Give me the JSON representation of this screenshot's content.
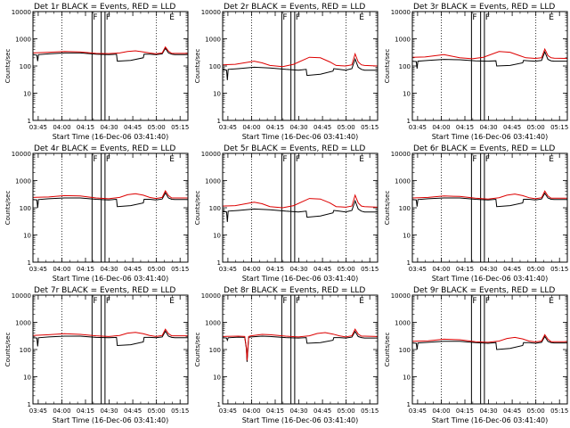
{
  "chart_data": {
    "type": "line",
    "layout": "3x3 grid",
    "xlabel": "Start Time (16-Dec-06 03:41:40)",
    "ylabel": "Counts/sec",
    "x_tick_labels": [
      "03:45",
      "04:00",
      "04:15",
      "04:30",
      "04:45",
      "05:00",
      "05:15"
    ],
    "x_tick_minutes": [
      3.33,
      18.33,
      33.33,
      48.33,
      63.33,
      78.33,
      93.33
    ],
    "xlim_minutes": [
      0,
      98.3
    ],
    "y_scale": "log",
    "ylim": [
      1,
      10000
    ],
    "y_tick_labels": [
      "1",
      "10",
      "100",
      "1000",
      "10000"
    ],
    "y_tick_values": [
      1,
      10,
      100,
      1000,
      10000
    ],
    "dotted_lines_at": [
      "04:00",
      "05:00"
    ],
    "flag_markers": [
      {
        "label": "F",
        "x_minutes": 37.5
      },
      {
        "label": "F",
        "x_minutes": 45.7
      },
      {
        "label": "E",
        "x_minutes": 86.0
      }
    ],
    "solid_vertical_lines_minutes": [
      37.5,
      43.3,
      45.7
    ],
    "series_colors": {
      "events": "#000000",
      "lld": "#dd0000"
    },
    "panels": [
      {
        "title": "Det 1r BLACK = Events, RED = LLD",
        "lld": {
          "x": [
            0,
            10,
            20,
            30,
            40,
            48,
            55,
            60,
            65,
            70,
            74,
            78,
            82,
            84,
            86,
            88,
            90,
            98.3
          ],
          "y": [
            300,
            320,
            340,
            330,
            290,
            285,
            300,
            340,
            360,
            330,
            300,
            280,
            300,
            500,
            350,
            290,
            290,
            290
          ]
        },
        "events": {
          "x": [
            0,
            2.5,
            3,
            3.5,
            10,
            20,
            30,
            40,
            48,
            53,
            53.5,
            62,
            70,
            70.5,
            74,
            78,
            82,
            84,
            86,
            88,
            90,
            98.3
          ],
          "y": [
            260,
            250,
            150,
            260,
            280,
            300,
            300,
            270,
            260,
            270,
            150,
            160,
            200,
            270,
            270,
            260,
            280,
            450,
            300,
            270,
            260,
            260
          ]
        }
      },
      {
        "title": "Det 2r BLACK = Events, RED = LLD",
        "lld": {
          "x": [
            0,
            8,
            20,
            25,
            30,
            38,
            45,
            55,
            62,
            68,
            72,
            78,
            82,
            84,
            86,
            88,
            90,
            98.3
          ],
          "y": [
            110,
            115,
            150,
            130,
            105,
            95,
            115,
            210,
            200,
            140,
            105,
            100,
            110,
            280,
            140,
            110,
            105,
            100
          ]
        },
        "events": {
          "x": [
            0,
            2.5,
            3,
            3.5,
            10,
            20,
            30,
            40,
            48,
            53,
            53.5,
            62,
            70,
            70.5,
            74,
            78,
            82,
            84,
            86,
            88,
            90,
            98.3
          ],
          "y": [
            75,
            70,
            30,
            75,
            80,
            90,
            85,
            75,
            70,
            75,
            45,
            50,
            65,
            80,
            75,
            70,
            80,
            180,
            90,
            75,
            70,
            70
          ]
        }
      },
      {
        "title": "Det 3r BLACK = Events, RED = LLD",
        "lld": {
          "x": [
            0,
            8,
            20,
            25,
            30,
            38,
            45,
            55,
            62,
            68,
            72,
            78,
            82,
            84,
            86,
            88,
            90,
            98.3
          ],
          "y": [
            210,
            215,
            260,
            230,
            200,
            185,
            210,
            340,
            320,
            240,
            200,
            190,
            200,
            420,
            240,
            200,
            195,
            190
          ]
        },
        "events": {
          "x": [
            0,
            2.5,
            3,
            3.5,
            10,
            20,
            30,
            40,
            48,
            53,
            53.5,
            62,
            70,
            70.5,
            74,
            78,
            82,
            84,
            86,
            88,
            90,
            98.3
          ],
          "y": [
            150,
            145,
            80,
            150,
            160,
            175,
            170,
            155,
            150,
            155,
            100,
            105,
            130,
            160,
            155,
            150,
            160,
            330,
            175,
            155,
            150,
            150
          ]
        }
      },
      {
        "title": "Det 4r BLACK = Events, RED = LLD",
        "lld": {
          "x": [
            0,
            10,
            20,
            30,
            40,
            48,
            55,
            60,
            65,
            70,
            74,
            78,
            82,
            84,
            86,
            88,
            90,
            98.3
          ],
          "y": [
            240,
            250,
            280,
            270,
            230,
            215,
            240,
            300,
            330,
            290,
            240,
            220,
            240,
            420,
            280,
            230,
            230,
            230
          ]
        },
        "events": {
          "x": [
            0,
            2.5,
            3,
            3.5,
            10,
            20,
            30,
            40,
            48,
            53,
            53.5,
            62,
            70,
            70.5,
            74,
            78,
            82,
            84,
            86,
            88,
            90,
            98.3
          ],
          "y": [
            200,
            195,
            100,
            200,
            215,
            230,
            230,
            205,
            195,
            205,
            110,
            120,
            150,
            205,
            205,
            195,
            210,
            350,
            230,
            205,
            200,
            200
          ]
        }
      },
      {
        "title": "Det 5r BLACK = Events, RED = LLD",
        "lld": {
          "x": [
            0,
            8,
            20,
            25,
            30,
            38,
            45,
            55,
            62,
            68,
            72,
            78,
            82,
            84,
            86,
            88,
            90,
            98.3
          ],
          "y": [
            115,
            120,
            160,
            140,
            110,
            100,
            120,
            220,
            210,
            150,
            110,
            105,
            115,
            290,
            150,
            115,
            110,
            105
          ]
        },
        "events": {
          "x": [
            0,
            2.5,
            3,
            3.5,
            10,
            20,
            30,
            40,
            48,
            53,
            53.5,
            62,
            70,
            70.5,
            74,
            78,
            82,
            84,
            86,
            88,
            90,
            98.3
          ],
          "y": [
            75,
            70,
            30,
            75,
            80,
            90,
            85,
            75,
            70,
            75,
            45,
            50,
            65,
            80,
            75,
            70,
            80,
            180,
            90,
            75,
            70,
            70
          ]
        }
      },
      {
        "title": "Det 6r BLACK = Events, RED = LLD",
        "lld": {
          "x": [
            0,
            10,
            20,
            30,
            40,
            48,
            55,
            60,
            65,
            70,
            74,
            78,
            82,
            84,
            86,
            88,
            90,
            98.3
          ],
          "y": [
            230,
            240,
            270,
            260,
            225,
            210,
            235,
            290,
            320,
            280,
            235,
            215,
            235,
            410,
            270,
            225,
            225,
            225
          ]
        },
        "events": {
          "x": [
            0,
            2.5,
            3,
            3.5,
            10,
            20,
            30,
            40,
            48,
            53,
            53.5,
            62,
            70,
            70.5,
            74,
            78,
            82,
            84,
            86,
            88,
            90,
            98.3
          ],
          "y": [
            200,
            195,
            110,
            200,
            215,
            230,
            230,
            205,
            195,
            205,
            110,
            120,
            150,
            205,
            205,
            195,
            210,
            340,
            230,
            205,
            200,
            200
          ]
        }
      },
      {
        "title": "Det 7r BLACK = Events, RED = LLD",
        "lld": {
          "x": [
            0,
            10,
            20,
            30,
            40,
            48,
            55,
            60,
            65,
            70,
            74,
            78,
            82,
            84,
            86,
            88,
            90,
            98.3
          ],
          "y": [
            330,
            350,
            380,
            360,
            320,
            300,
            330,
            400,
            430,
            380,
            330,
            300,
            330,
            560,
            380,
            320,
            320,
            320
          ]
        },
        "events": {
          "x": [
            0,
            2.5,
            3,
            3.5,
            10,
            20,
            30,
            40,
            48,
            53,
            53.5,
            62,
            70,
            70.5,
            74,
            78,
            82,
            84,
            86,
            88,
            90,
            98.3
          ],
          "y": [
            270,
            265,
            130,
            270,
            290,
            310,
            310,
            280,
            270,
            280,
            140,
            150,
            190,
            280,
            280,
            270,
            290,
            470,
            310,
            280,
            270,
            270
          ]
        }
      },
      {
        "title": "Det 8r BLACK = Events, RED = LLD",
        "lld": {
          "x": [
            0,
            10,
            14,
            15,
            15.5,
            16.5,
            18,
            25,
            30,
            40,
            48,
            55,
            60,
            65,
            70,
            74,
            78,
            82,
            84,
            86,
            88,
            90,
            98.3
          ],
          "y": [
            300,
            310,
            300,
            120,
            40,
            300,
            320,
            360,
            350,
            310,
            290,
            320,
            390,
            420,
            370,
            320,
            290,
            320,
            560,
            370,
            310,
            310,
            300
          ]
        },
        "events": {
          "x": [
            0,
            2.5,
            3,
            3.5,
            10,
            14,
            15,
            15.5,
            16.5,
            18,
            25,
            30,
            40,
            48,
            53,
            53.5,
            62,
            70,
            70.5,
            74,
            78,
            82,
            84,
            86,
            88,
            90,
            98.3
          ],
          "y": [
            270,
            265,
            220,
            270,
            285,
            280,
            110,
            35,
            280,
            290,
            310,
            300,
            275,
            265,
            275,
            170,
            180,
            220,
            275,
            275,
            265,
            285,
            460,
            300,
            275,
            265,
            265
          ]
        }
      },
      {
        "title": "Det 9r BLACK = Events, RED = LLD",
        "lld": {
          "x": [
            0,
            10,
            20,
            30,
            40,
            48,
            55,
            60,
            65,
            70,
            74,
            78,
            82,
            84,
            86,
            88,
            90,
            98.3
          ],
          "y": [
            200,
            210,
            240,
            230,
            195,
            185,
            205,
            255,
            280,
            245,
            205,
            190,
            205,
            350,
            240,
            195,
            195,
            195
          ]
        },
        "events": {
          "x": [
            0,
            2.5,
            3,
            3.5,
            10,
            20,
            30,
            40,
            48,
            53,
            53.5,
            62,
            70,
            70.5,
            74,
            78,
            82,
            84,
            86,
            88,
            90,
            98.3
          ],
          "y": [
            175,
            170,
            100,
            175,
            185,
            200,
            200,
            180,
            170,
            180,
            100,
            110,
            140,
            180,
            180,
            170,
            185,
            300,
            200,
            180,
            175,
            175
          ]
        }
      }
    ]
  }
}
